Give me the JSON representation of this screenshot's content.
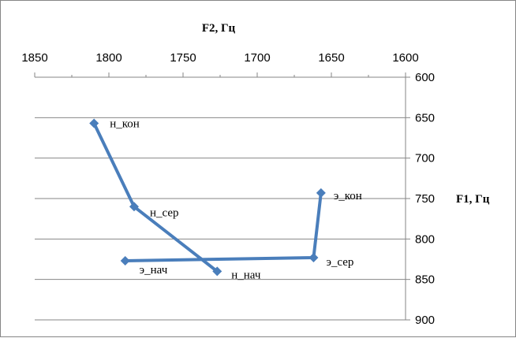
{
  "chart_data": {
    "type": "scatter",
    "xlabel": "F2, Гц",
    "ylabel": "F1, Гц",
    "xlim": [
      1850,
      1600
    ],
    "ylim": [
      600,
      900
    ],
    "x_reversed": true,
    "y_reversed": true,
    "x_axis_position": "top",
    "y_axis_position": "right",
    "x_ticks": [
      "1850",
      "1800",
      "1750",
      "1700",
      "1650",
      "1600"
    ],
    "y_ticks": [
      "600",
      "650",
      "700",
      "750",
      "800",
      "850",
      "900"
    ],
    "grid": "horizontal",
    "series": [
      {
        "color": "#4a7ebb",
        "marker": "diamond",
        "points": [
          {
            "label": "н_кон",
            "x": 1810,
            "y": 657
          },
          {
            "label": "н_сер",
            "x": 1783,
            "y": 760
          },
          {
            "label": "н_нач",
            "x": 1727,
            "y": 840
          }
        ]
      },
      {
        "color": "#4a7ebb",
        "marker": "diamond",
        "points": [
          {
            "label": "э_нач",
            "x": 1789,
            "y": 827
          },
          {
            "label": "э_сер",
            "x": 1662,
            "y": 823
          },
          {
            "label": "э_кон",
            "x": 1657,
            "y": 743
          }
        ]
      }
    ]
  }
}
